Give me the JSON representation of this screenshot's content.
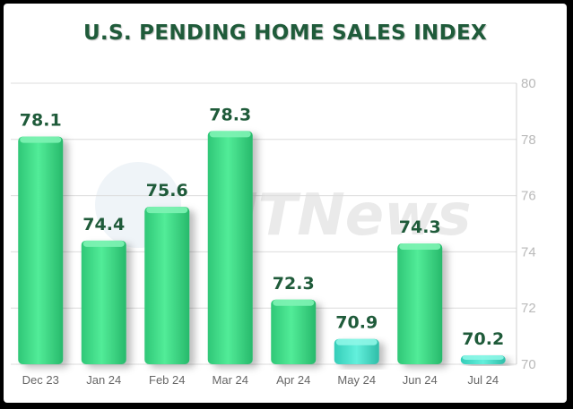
{
  "chart_data": {
    "type": "bar",
    "title": "U.S. PENDING HOME SALES INDEX",
    "categories": [
      "Dec 23",
      "Jan 24",
      "Feb 24",
      "Mar 24",
      "Apr 24",
      "May 24",
      "Jun 24",
      "Jul 24"
    ],
    "values": [
      78.1,
      74.4,
      75.6,
      78.3,
      72.3,
      70.9,
      74.3,
      70.2
    ],
    "value_labels": [
      "78.1",
      "74.4",
      "75.6",
      "78.3",
      "72.3",
      "70.9",
      "74.3",
      "70.2"
    ],
    "ylim": [
      70,
      80
    ],
    "yticks": [
      "70",
      "72",
      "74",
      "76",
      "78",
      "80"
    ],
    "ytick_values": [
      70,
      72,
      74,
      76,
      78,
      80
    ],
    "yaxis_side": "right",
    "grid": true,
    "bar_color": "#3fe08a",
    "bar_color_low": "#45e6cf",
    "label_color": "#1f5b3a",
    "watermark": "HTNews"
  }
}
